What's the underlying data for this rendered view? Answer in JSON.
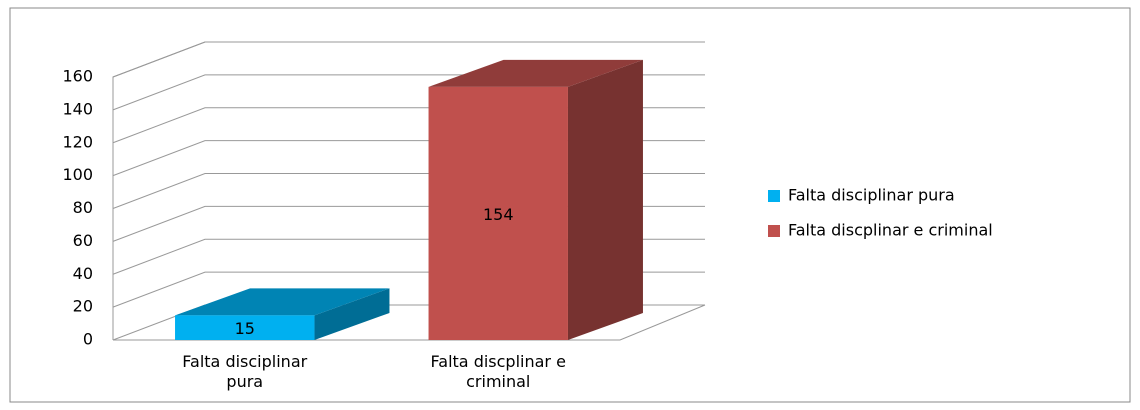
{
  "chart_data": {
    "type": "bar3d",
    "categories": [
      "Falta disciplinar pura",
      "Falta discplinar e criminal"
    ],
    "values": [
      15,
      154
    ],
    "colors": [
      "#00b0f0",
      "#c0504d"
    ],
    "ylim": [
      0,
      160
    ],
    "yticks": [
      0,
      20,
      40,
      60,
      80,
      100,
      120,
      140,
      160
    ],
    "grid": true,
    "legend": "right"
  }
}
